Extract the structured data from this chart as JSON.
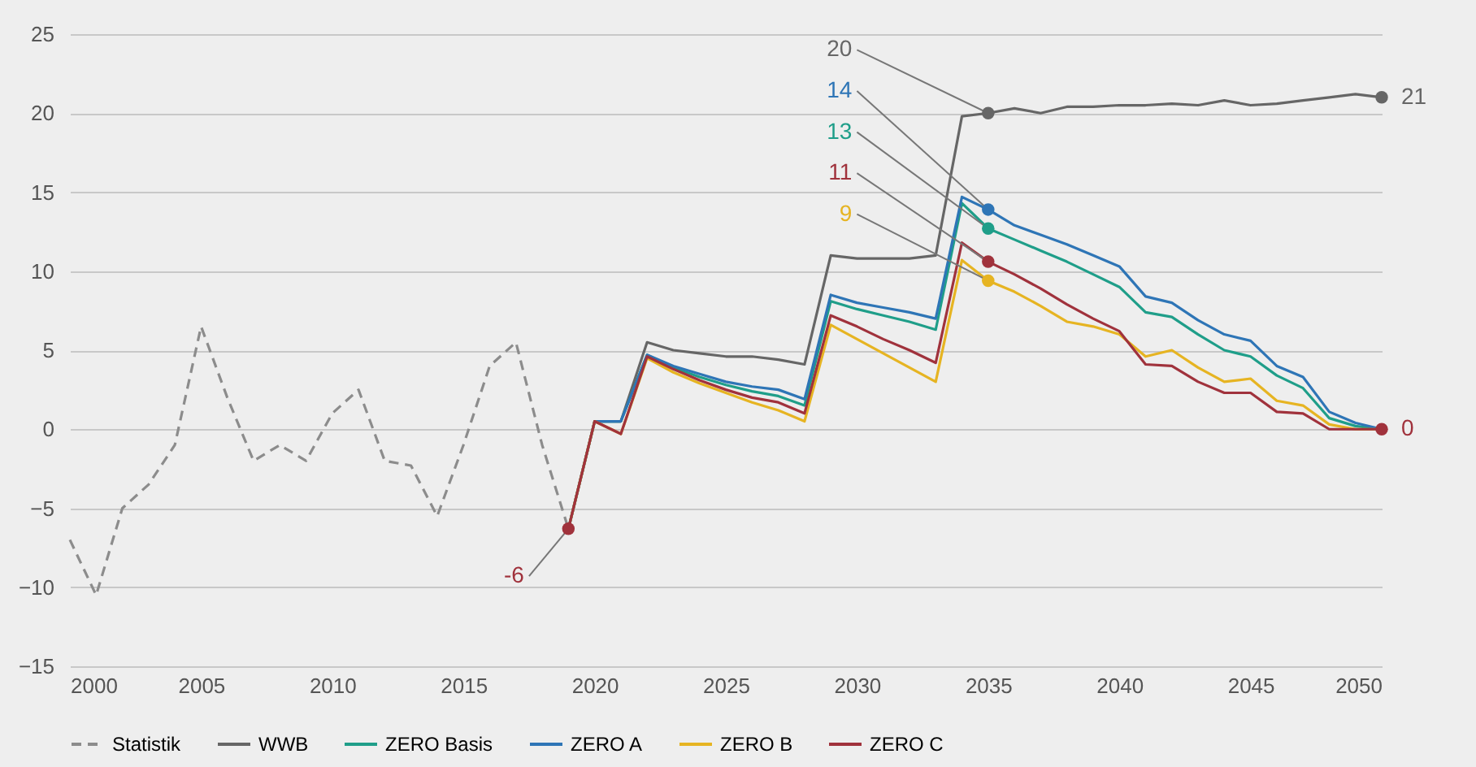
{
  "chart_data": {
    "type": "line",
    "x": [
      2019,
      2020,
      2021,
      2022,
      2023,
      2024,
      2025,
      2026,
      2027,
      2028,
      2029,
      2030,
      2031,
      2032,
      2033,
      2034,
      2035,
      2036,
      2037,
      2038,
      2039,
      2040,
      2041,
      2042,
      2043,
      2044,
      2045,
      2046,
      2047,
      2048,
      2049,
      2050
    ],
    "series": [
      {
        "name": "Statistik",
        "color": "#8c8c8c",
        "line_style": "dashed",
        "x": [
          2000,
          2001,
          2002,
          2003,
          2004,
          2005,
          2006,
          2007,
          2008,
          2009,
          2010,
          2011,
          2012,
          2013,
          2014,
          2015,
          2016,
          2017,
          2018,
          2019
        ],
        "values": [
          -7,
          -10.5,
          -5,
          -3.5,
          -1,
          6.5,
          2,
          -2,
          -1,
          -2,
          1,
          2.5,
          -2,
          -2.3,
          -5.5,
          -1,
          4,
          5.5,
          -1,
          -6.3
        ]
      },
      {
        "name": "WWB",
        "color": "#666666",
        "values": [
          -6.3,
          0.5,
          0.5,
          5.5,
          5,
          4.8,
          4.6,
          4.6,
          4.4,
          4.1,
          11,
          10.8,
          10.8,
          10.8,
          11,
          19.8,
          20,
          20.3,
          20,
          20.4,
          20.4,
          20.5,
          20.5,
          20.6,
          20.5,
          20.8,
          20.5,
          20.6,
          20.8,
          21,
          21.2,
          21
        ]
      },
      {
        "name": "ZERO Basis",
        "color": "#1f9e89",
        "values": [
          -6.3,
          0.5,
          0.5,
          4.7,
          3.9,
          3.3,
          2.8,
          2.4,
          2.1,
          1.5,
          8.1,
          7.6,
          7.2,
          6.8,
          6.3,
          14.3,
          12.7,
          12,
          11.3,
          10.6,
          9.8,
          9,
          7.4,
          7.1,
          6,
          5,
          4.6,
          3.4,
          2.6,
          0.7,
          0.2,
          0
        ]
      },
      {
        "name": "ZERO A",
        "color": "#2e75b6",
        "values": [
          -6.3,
          0.5,
          0.5,
          4.7,
          4,
          3.5,
          3,
          2.7,
          2.5,
          1.9,
          8.5,
          8,
          7.7,
          7.4,
          7,
          14.7,
          13.9,
          12.9,
          12.3,
          11.7,
          11,
          10.3,
          8.4,
          8,
          6.9,
          6,
          5.6,
          4,
          3.3,
          1.1,
          0.4,
          0
        ]
      },
      {
        "name": "ZERO B",
        "color": "#e6b422",
        "values": [
          -6.3,
          0.5,
          -0.3,
          4.5,
          3.6,
          2.9,
          2.3,
          1.7,
          1.2,
          0.5,
          6.6,
          5.7,
          4.8,
          3.9,
          3,
          10.7,
          9.4,
          8.7,
          7.8,
          6.8,
          6.5,
          6,
          4.6,
          5,
          3.9,
          3,
          3.2,
          1.8,
          1.5,
          0.3,
          0,
          0
        ]
      },
      {
        "name": "ZERO C",
        "color": "#a0323c",
        "values": [
          -6.3,
          0.5,
          -0.3,
          4.6,
          3.8,
          3.1,
          2.5,
          2,
          1.7,
          1,
          7.2,
          6.5,
          5.7,
          5,
          4.2,
          11.8,
          10.6,
          9.8,
          8.9,
          7.9,
          7,
          6.2,
          4.1,
          4,
          3,
          2.3,
          2.3,
          1.1,
          1,
          0,
          0,
          0
        ]
      }
    ],
    "annotations": [
      {
        "text": "-6",
        "x": 2019,
        "y": -6.3
      },
      {
        "text": "20",
        "x": 2035,
        "y": 20
      },
      {
        "text": "14",
        "x": 2035,
        "y": 13.9
      },
      {
        "text": "13",
        "x": 2035,
        "y": 12.7
      },
      {
        "text": "11",
        "x": 2035,
        "y": 10.6
      },
      {
        "text": "9",
        "x": 2035,
        "y": 9.4
      },
      {
        "text": "21",
        "x": 2050,
        "y": 21
      },
      {
        "text": "0",
        "x": 2050,
        "y": 0
      }
    ],
    "xlim": [
      2000,
      2050
    ],
    "xticks": [
      2000,
      2005,
      2010,
      2015,
      2020,
      2025,
      2030,
      2035,
      2040,
      2045,
      2050
    ],
    "ylim": [
      -15,
      25
    ],
    "yticks": [
      -15,
      -10,
      -5,
      0,
      5,
      10,
      15,
      20,
      25
    ],
    "grid": "y",
    "legend": "bottom",
    "marker": "none",
    "line_style": "solid"
  }
}
